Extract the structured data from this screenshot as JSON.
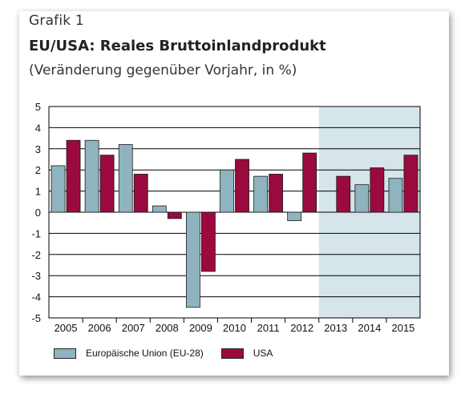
{
  "header": {
    "label": "Grafik 1",
    "title": "EU/USA: Reales Bruttoinlandprodukt",
    "subtitle": "(Veränderung gegenüber Vorjahr, in %)"
  },
  "colors": {
    "eu": "#8fb4c0",
    "usa": "#9a0a3e",
    "forecast_band": "#d5e5ea",
    "gridline": "#000000"
  },
  "chart_data": {
    "type": "bar",
    "categories": [
      "2005",
      "2006",
      "2007",
      "2008",
      "2009",
      "2010",
      "2011",
      "2012",
      "2013",
      "2014",
      "2015"
    ],
    "series": [
      {
        "name": "Europäische Union (EU-28)",
        "values": [
          2.2,
          3.4,
          3.2,
          0.3,
          -4.5,
          2.0,
          1.7,
          -0.4,
          0.0,
          1.3,
          1.6
        ]
      },
      {
        "name": "USA",
        "values": [
          3.4,
          2.7,
          1.8,
          -0.3,
          -2.8,
          2.5,
          1.8,
          2.8,
          1.7,
          2.1,
          2.7
        ]
      }
    ],
    "ylim": [
      -5,
      5
    ],
    "yticks": [
      "5",
      "4",
      "3",
      "2",
      "1",
      "0",
      "-1",
      "-2",
      "-3",
      "-4",
      "-5"
    ],
    "shaded_categories": [
      "2013",
      "2014",
      "2015"
    ],
    "grid": true,
    "legend_position": "bottom"
  }
}
